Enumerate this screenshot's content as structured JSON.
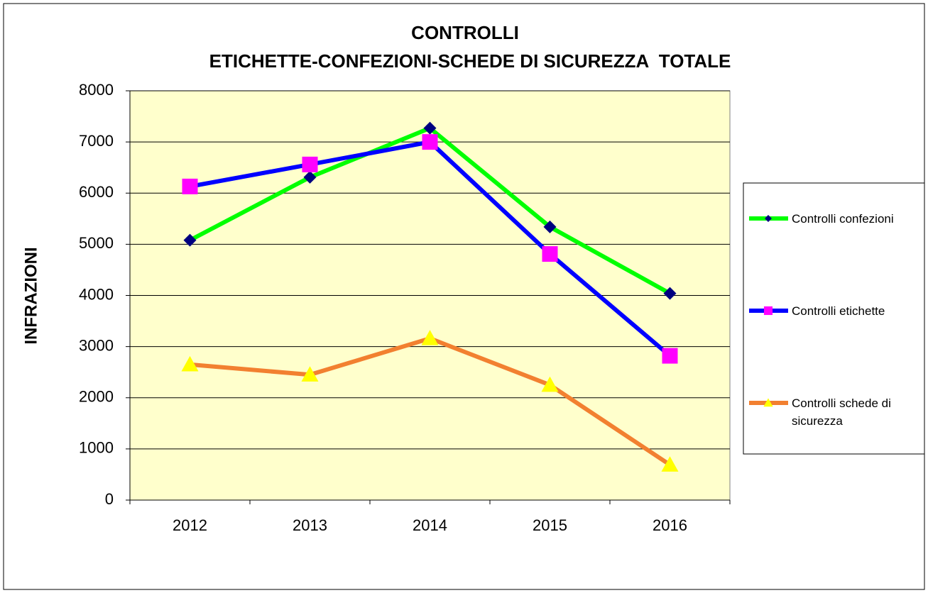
{
  "chart_data": {
    "type": "line",
    "title": "CONTROLLI",
    "subtitle": "ETICHETTE-CONFEZIONI-SCHEDE DI SICUREZZA  TOTALE",
    "y_label": "INFRAZIONI",
    "categories": [
      "2012",
      "2013",
      "2014",
      "2015",
      "2016"
    ],
    "series": [
      {
        "name": "Controlli confezioni",
        "color": "#00ff00",
        "marker": "diamond",
        "marker_color": "#000080",
        "values": [
          5080,
          6310,
          7270,
          5340,
          4040
        ]
      },
      {
        "name": "Controlli etichette",
        "color": "#0000ff",
        "marker": "square",
        "marker_color": "#ff00ff",
        "values": [
          6130,
          6560,
          7000,
          4810,
          2820
        ]
      },
      {
        "name": "Controlli schede di sicurezza",
        "color": "#f28030",
        "marker": "triangle",
        "marker_color": "#ffff00",
        "values": [
          2650,
          2450,
          3160,
          2250,
          690
        ]
      }
    ],
    "ylim": [
      0,
      8000
    ],
    "yticks": [
      0,
      1000,
      2000,
      3000,
      4000,
      5000,
      6000,
      7000,
      8000
    ],
    "grid": true,
    "plot_background": "#ffffcc",
    "legend": "right"
  }
}
